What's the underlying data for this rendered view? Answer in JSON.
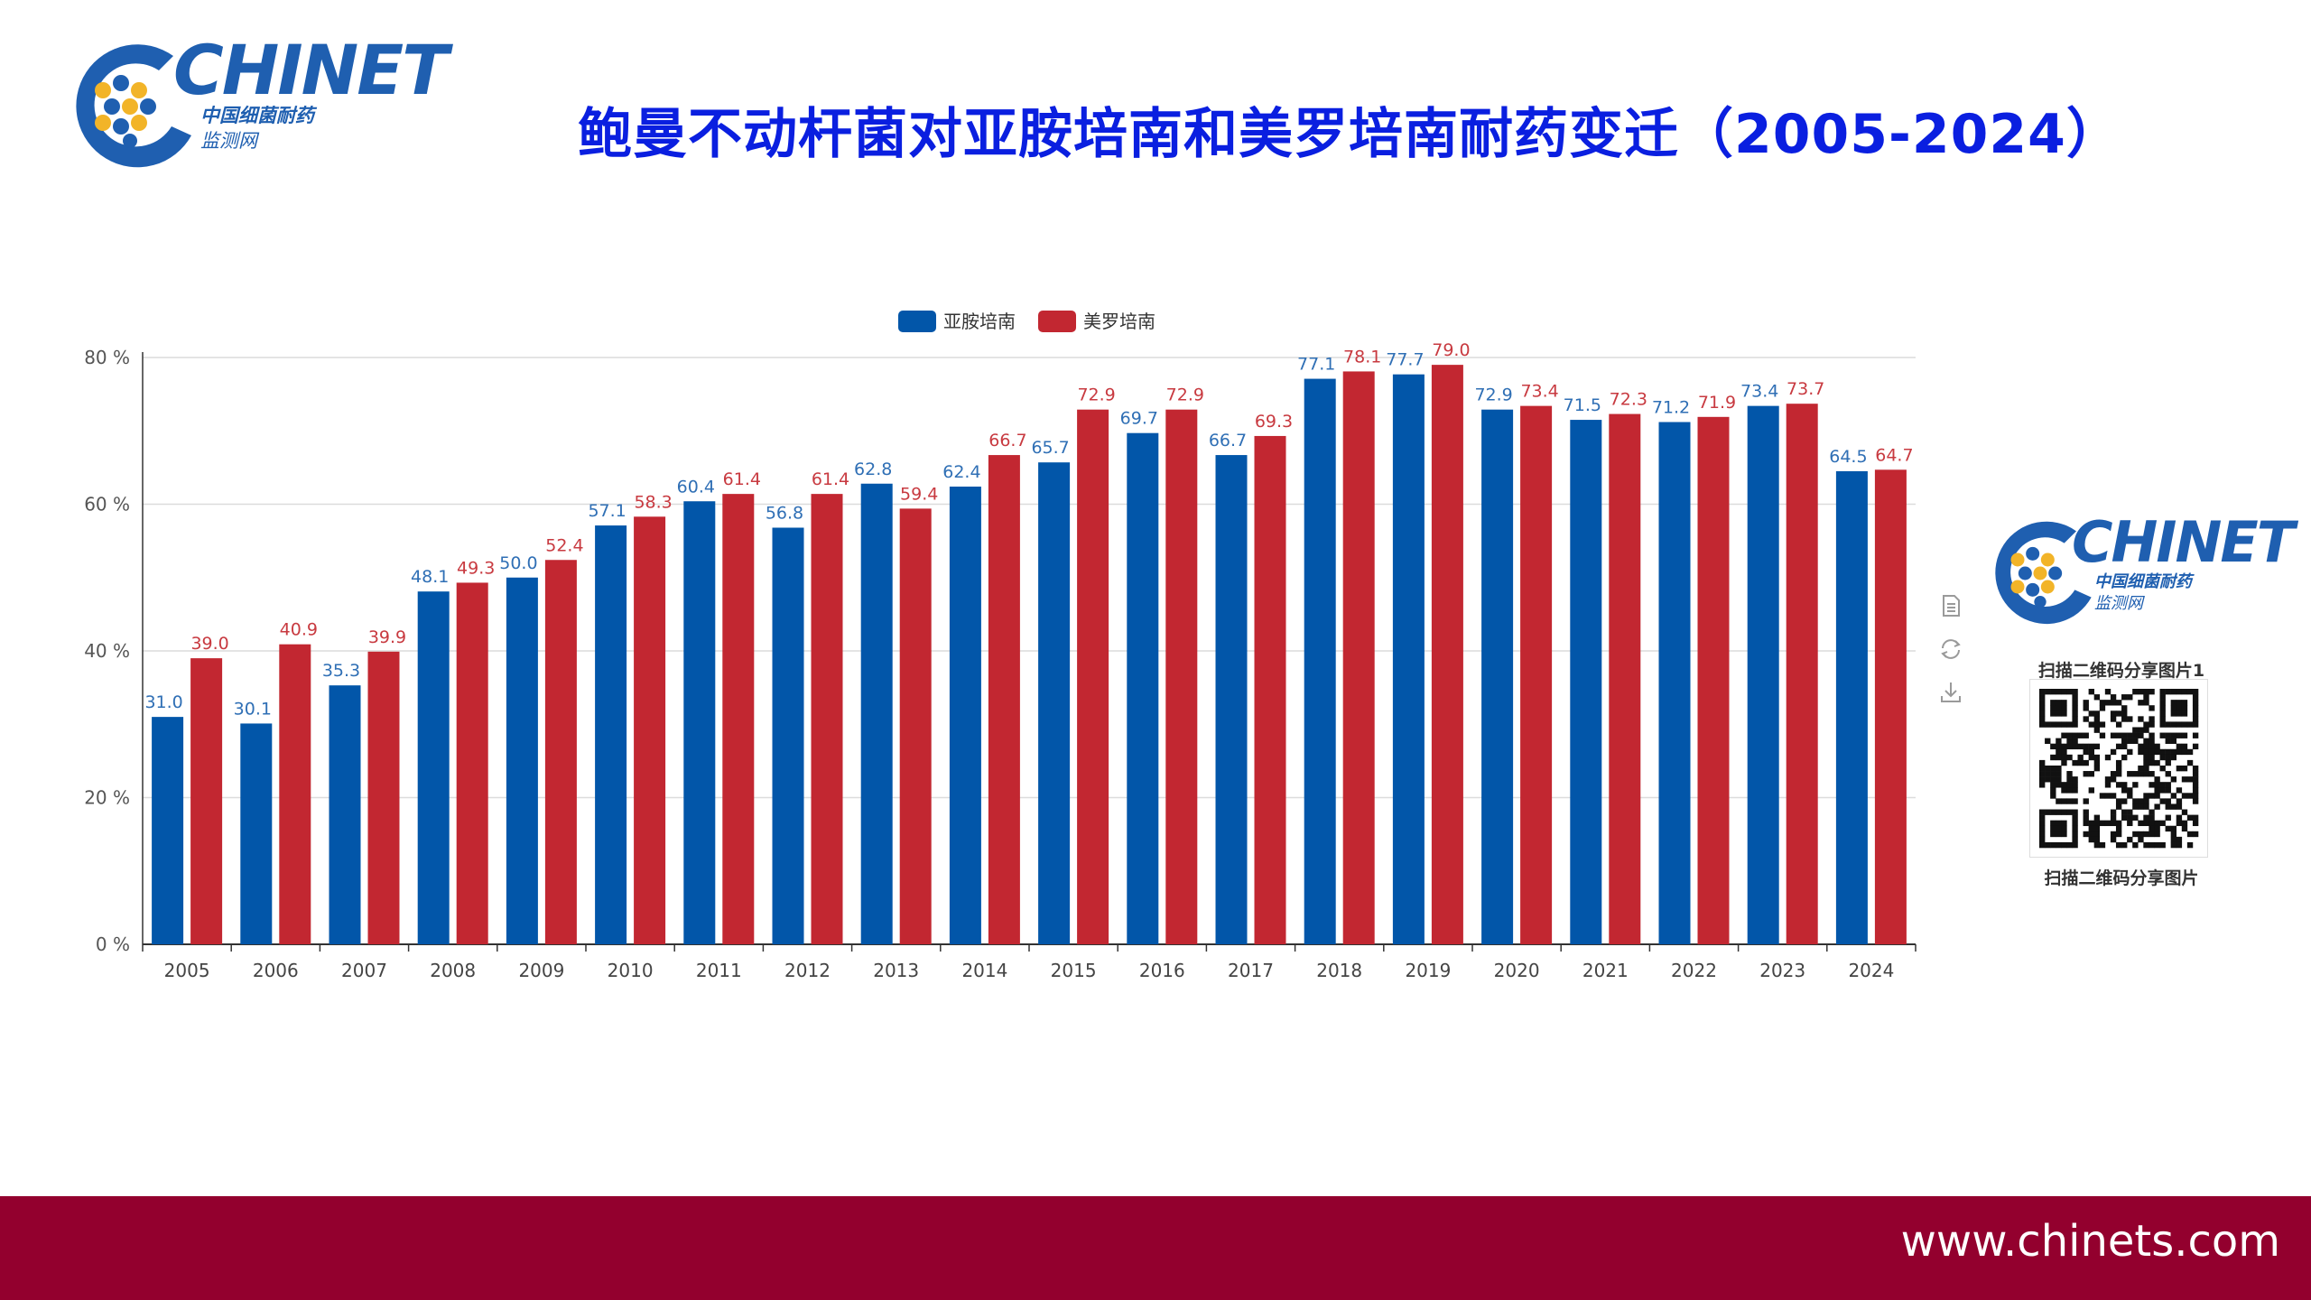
{
  "logo": {
    "wordmark": "CHINET",
    "subtitle_line1": "中国细菌耐药",
    "subtitle_line2": "监测网"
  },
  "page": {
    "title": "鲍曼不动杆菌对亚胺培南和美罗培南耐药变迁（2005-2024）"
  },
  "qr": {
    "caption_top": "扫描二维码分享图片1",
    "caption_bottom": "扫描二维码分享图片"
  },
  "toolbox": {
    "icons": [
      "data-view-icon",
      "restore-icon",
      "save-image-icon"
    ]
  },
  "footer": {
    "url": "www.chinets.com"
  },
  "colors": {
    "title": "#0a1fe0",
    "imipenem": "#0256a9",
    "meropenem": "#c22731",
    "footer": "#93002e"
  },
  "chart_data": {
    "type": "bar",
    "title": "",
    "xlabel": "",
    "ylabel": "",
    "ylim": [
      0,
      80
    ],
    "y_ticks": [
      "0 %",
      "20 %",
      "40 %",
      "60 %",
      "80 %"
    ],
    "grid": true,
    "legend_position": "top-center",
    "categories": [
      "2005",
      "2006",
      "2007",
      "2008",
      "2009",
      "2010",
      "2011",
      "2012",
      "2013",
      "2014",
      "2015",
      "2016",
      "2017",
      "2018",
      "2019",
      "2020",
      "2021",
      "2022",
      "2023",
      "2024"
    ],
    "series": [
      {
        "name": "亚胺培南",
        "color": "#0256a9",
        "values": [
          31.0,
          30.1,
          35.3,
          48.1,
          50.0,
          57.1,
          60.4,
          56.8,
          62.8,
          62.4,
          65.7,
          69.7,
          66.7,
          77.1,
          77.7,
          72.9,
          71.5,
          71.2,
          73.4,
          64.5
        ],
        "labels": [
          "31.0",
          "30.1",
          "35.3",
          "48.1",
          "50.0",
          "57.1",
          "60.4",
          "56.8",
          "62.8",
          "62.4",
          "65.7",
          "69.7",
          "66.7",
          "77.1",
          "77.7",
          "72.9",
          "71.5",
          "71.2",
          "73.4",
          "64.5"
        ]
      },
      {
        "name": "美罗培南",
        "color": "#c22731",
        "values": [
          39.0,
          40.9,
          39.9,
          49.3,
          52.4,
          58.3,
          61.4,
          61.4,
          59.4,
          66.7,
          72.9,
          72.9,
          69.3,
          78.1,
          79.0,
          73.4,
          72.3,
          71.9,
          73.7,
          64.7
        ],
        "labels": [
          "39.0",
          "40.9",
          "39.9",
          "49.3",
          "52.4",
          "58.3",
          "61.4",
          "61.4",
          "59.4",
          "66.7",
          "72.9",
          "72.9",
          "69.3",
          "78.1",
          "79.0",
          "73.4",
          "72.3",
          "71.9",
          "73.7",
          "64.7"
        ]
      }
    ]
  }
}
